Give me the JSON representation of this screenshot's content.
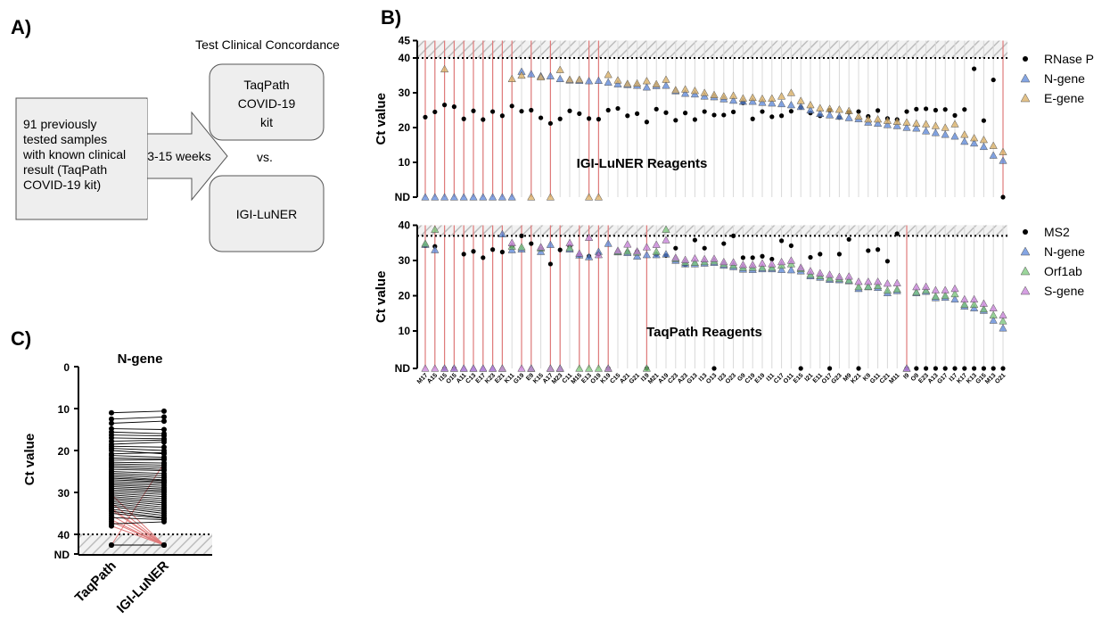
{
  "panels": {
    "a": "A)",
    "b": "B)",
    "c": "C)"
  },
  "panel_a": {
    "header": "Test Clinical Concordance",
    "samples_box": [
      "91 previously",
      "tested samples",
      "with known clinical",
      "result (TaqPath",
      "COVID-19 kit)"
    ],
    "arrow_label": "3-15 weeks",
    "taqpath_box": [
      "TaqPath",
      "COVID-19",
      "kit"
    ],
    "vs": "vs.",
    "luner_box": "IGI-LuNER"
  },
  "colors": {
    "control": "#000000",
    "ngene": "#5B87D9",
    "egene": "#D9AE62",
    "orf1ab": "#79C779",
    "sgene": "#C77FD8",
    "discordant_line": "#E07B7B",
    "gridline": "#d9d9d9",
    "hatch": "#bdbdbd"
  },
  "chart_data": [
    {
      "type": "scatter",
      "title": "IGI-LuNER Reagents",
      "ylabel": "Ct value",
      "ylim": [
        0,
        45
      ],
      "yticks": [
        "ND",
        "10",
        "20",
        "30",
        "40",
        "45"
      ],
      "threshold": 40,
      "legend_position": "right",
      "samples": [
        "M17",
        "A15",
        "I15",
        "O15",
        "A11",
        "C13",
        "E17",
        "K23",
        "E21",
        "K11",
        "G19",
        "E9",
        "K15",
        "A17",
        "M23",
        "C11",
        "M15",
        "E13",
        "O19",
        "K19",
        "C15",
        "A21",
        "G21",
        "I19",
        "M21",
        "A19",
        "C23",
        "A23",
        "G13",
        "I13",
        "O13",
        "I23",
        "O23",
        "G9",
        "C19",
        "E19",
        "I11",
        "C17",
        "O11",
        "E15",
        "I21",
        "E11",
        "O17",
        "G23",
        "M9",
        "K21",
        "K9",
        "G11",
        "C21",
        "M11",
        "I9",
        "O9",
        "E23",
        "A13",
        "G17",
        "I17",
        "K17",
        "K13",
        "G15",
        "M13",
        "O21"
      ],
      "series": [
        {
          "name": "RNase P",
          "marker": "circle",
          "values": [
            23.0,
            24.5,
            26.5,
            26.0,
            22.5,
            24.8,
            22.3,
            24.6,
            23.4,
            26.2,
            24.7,
            25.0,
            22.8,
            21.2,
            22.5,
            24.8,
            24.0,
            22.6,
            22.4,
            25.0,
            25.5,
            23.4,
            24.0,
            21.6,
            25.3,
            24.3,
            22.1,
            24.2,
            22.3,
            24.6,
            23.6,
            23.6,
            24.5,
            27.1,
            22.5,
            24.6,
            23.1,
            23.4,
            24.7,
            25.8,
            24.2,
            23.4,
            25.0,
            22.9,
            24.4,
            24.6,
            23.2,
            24.9,
            22.6,
            22.3,
            24.6,
            25.3,
            25.4,
            25.0,
            25.2,
            23.5,
            25.2,
            36.9,
            22.0,
            33.7,
            0
          ]
        },
        {
          "name": "N-gene",
          "marker": "triangle",
          "values": [
            0,
            0,
            0,
            0,
            0,
            0,
            0,
            0,
            0,
            0,
            36.1,
            35.4,
            34.8,
            34.8,
            34.0,
            33.6,
            33.5,
            33.4,
            33.5,
            33.0,
            32.5,
            32.3,
            32.1,
            31.6,
            32.0,
            32.1,
            30.5,
            29.8,
            29.6,
            29.0,
            28.8,
            28.2,
            27.8,
            27.5,
            27.5,
            27.2,
            27.0,
            26.8,
            26.5,
            26.0,
            25.0,
            24.0,
            23.6,
            23.2,
            22.8,
            22.5,
            21.5,
            21.2,
            20.8,
            20.5,
            20.0,
            19.8,
            19.0,
            18.5,
            18.0,
            17.5,
            16.0,
            15.5,
            14.5,
            12.0,
            10.5
          ]
        },
        {
          "name": "E-gene",
          "marker": "triangle",
          "values": [
            null,
            null,
            36.8,
            null,
            null,
            null,
            null,
            null,
            null,
            34.0,
            35.0,
            0,
            34.5,
            0,
            36.6,
            33.8,
            33.8,
            0,
            0,
            35.2,
            33.6,
            32.6,
            32.7,
            33.4,
            32.5,
            33.8,
            30.8,
            31.0,
            30.6,
            30.0,
            29.4,
            29.0,
            29.2,
            28.4,
            28.6,
            28.3,
            28.4,
            29.0,
            30.0,
            27.7,
            26.5,
            25.6,
            25.4,
            25.2,
            24.8,
            23.2,
            22.4,
            22.4,
            22.0,
            21.7,
            21.5,
            21.2,
            21.0,
            20.5,
            20.0,
            21.0,
            18.0,
            17.0,
            16.5,
            14.8,
            13.0
          ]
        }
      ]
    },
    {
      "type": "scatter",
      "title": "TaqPath Reagents",
      "ylabel": "Ct value",
      "ylim": [
        0,
        40
      ],
      "yticks": [
        "ND",
        "10",
        "20",
        "30",
        "40"
      ],
      "threshold": 37,
      "legend_position": "right",
      "samples": [
        "M17",
        "A15",
        "I15",
        "O15",
        "A11",
        "C13",
        "E17",
        "K23",
        "E21",
        "K11",
        "G19",
        "E9",
        "K15",
        "A17",
        "M23",
        "C11",
        "M15",
        "E13",
        "O19",
        "K19",
        "C15",
        "A21",
        "G21",
        "I19",
        "M21",
        "A19",
        "C23",
        "A23",
        "G13",
        "I13",
        "O13",
        "I23",
        "O23",
        "G9",
        "C19",
        "E19",
        "I11",
        "C17",
        "O11",
        "E15",
        "I21",
        "E11",
        "O17",
        "G23",
        "M9",
        "K21",
        "K9",
        "G11",
        "C21",
        "M11",
        "I9",
        "O9",
        "E23",
        "A13",
        "G17",
        "I17",
        "K17",
        "K13",
        "G15",
        "M13",
        "O21"
      ],
      "series": [
        {
          "name": "MS2",
          "marker": "circle",
          "values": [
            34.2,
            34.0,
            0,
            0,
            31.8,
            32.6,
            30.8,
            33.1,
            32.4,
            34.0,
            37.0,
            34.8,
            33.2,
            29.0,
            33.0,
            34.0,
            31.5,
            31.2,
            31.8,
            0,
            32.4,
            32.4,
            32.5,
            0,
            31.7,
            31.4,
            33.5,
            28.8,
            35.8,
            33.5,
            0,
            34.8,
            37.0,
            30.8,
            30.8,
            31.2,
            30.4,
            35.6,
            34.2,
            0,
            30.9,
            31.8,
            0,
            31.8,
            36.0,
            0,
            32.8,
            33.1,
            29.8,
            37.6,
            0,
            0,
            0,
            0,
            0,
            0,
            0,
            0,
            0,
            0,
            0
          ]
        },
        {
          "name": "N-gene",
          "marker": "triangle",
          "values": [
            34.5,
            33.0,
            0,
            0,
            0,
            0,
            0,
            0,
            37.5,
            33.0,
            33.2,
            0,
            32.5,
            34.5,
            0,
            33.2,
            31.5,
            31.0,
            32.5,
            34.8,
            32.4,
            32.2,
            31.2,
            31.6,
            31.6,
            31.8,
            30.0,
            29.0,
            29.0,
            29.2,
            29.4,
            28.6,
            28.2,
            27.5,
            27.4,
            27.6,
            27.6,
            27.4,
            27.3,
            27.0,
            25.6,
            25.2,
            24.6,
            24.5,
            24.2,
            22.0,
            22.5,
            22.3,
            20.8,
            21.4,
            0,
            20.8,
            21.2,
            19.4,
            19.5,
            19.0,
            17.0,
            16.5,
            15.8,
            13.0,
            10.8
          ]
        },
        {
          "name": "Orf1ab",
          "marker": "triangle",
          "values": [
            34.8,
            38.8,
            null,
            null,
            null,
            null,
            null,
            null,
            0,
            34.0,
            33.8,
            0,
            33.5,
            0,
            0,
            33.6,
            0,
            0,
            0,
            0,
            32.5,
            32.6,
            32.3,
            0,
            32.5,
            38.8,
            30.5,
            29.5,
            29.4,
            29.6,
            29.8,
            29.0,
            28.6,
            28.0,
            28.0,
            28.0,
            28.0,
            28.6,
            29.0,
            27.6,
            26.0,
            25.6,
            25.0,
            24.8,
            24.4,
            22.5,
            22.6,
            22.8,
            21.5,
            21.8,
            null,
            21.0,
            21.5,
            19.8,
            20.0,
            20.5,
            17.5,
            17.5,
            16.2,
            14.5,
            12.8
          ]
        },
        {
          "name": "S-gene",
          "marker": "triangle",
          "values": [
            0,
            0,
            0,
            0,
            0,
            0,
            0,
            0,
            0,
            35.0,
            0,
            0,
            33.8,
            0,
            0,
            35.0,
            32.0,
            36.5,
            31.6,
            0,
            32.8,
            34.6,
            32.6,
            33.8,
            34.5,
            35.8,
            30.8,
            30.2,
            30.6,
            30.4,
            30.5,
            29.6,
            29.5,
            28.8,
            28.8,
            29.2,
            29.0,
            29.6,
            30.0,
            28.0,
            27.0,
            26.4,
            26.0,
            25.4,
            25.5,
            24.0,
            24.0,
            24.0,
            23.5,
            23.6,
            0,
            22.5,
            22.6,
            21.6,
            21.6,
            22.0,
            19.0,
            19.0,
            17.8,
            16.5,
            14.5
          ]
        }
      ]
    },
    {
      "type": "line",
      "title": "N-gene",
      "ylabel": "Ct value",
      "ylim": [
        0,
        40
      ],
      "yticks": [
        "0",
        "10",
        "20",
        "30",
        "40",
        "ND"
      ],
      "threshold": 40,
      "categories": [
        "TaqPath",
        "IGI-LuNER"
      ],
      "pairs": [
        [
          11.0,
          10.6
        ],
        [
          12.5,
          12.0
        ],
        [
          13.5,
          13.0
        ],
        [
          14.8,
          15.0
        ],
        [
          15.6,
          16.0
        ],
        [
          16.3,
          16.5
        ],
        [
          17.0,
          17.2
        ],
        [
          17.8,
          17.5
        ],
        [
          18.5,
          18.0
        ],
        [
          19.0,
          19.2
        ],
        [
          19.5,
          20.0
        ],
        [
          20.0,
          20.8
        ],
        [
          20.8,
          20.5
        ],
        [
          21.2,
          21.6
        ],
        [
          21.8,
          22.0
        ],
        [
          22.3,
          22.2
        ],
        [
          22.8,
          23.0
        ],
        [
          23.2,
          23.5
        ],
        [
          23.6,
          24.0
        ],
        [
          24.0,
          24.5
        ],
        [
          24.5,
          24.8
        ],
        [
          25.0,
          25.5
        ],
        [
          25.4,
          26.0
        ],
        [
          25.8,
          26.5
        ],
        [
          26.2,
          27.0
        ],
        [
          26.6,
          27.2
        ],
        [
          27.0,
          27.5
        ],
        [
          27.4,
          27.8
        ],
        [
          27.8,
          28.3
        ],
        [
          28.2,
          28.8
        ],
        [
          28.6,
          29.2
        ],
        [
          29.0,
          29.6
        ],
        [
          29.4,
          30.0
        ],
        [
          29.8,
          30.5
        ],
        [
          30.2,
          31.0
        ],
        [
          30.6,
          31.5
        ],
        [
          31.0,
          32.0
        ],
        [
          31.4,
          32.5
        ],
        [
          31.8,
          33.0
        ],
        [
          32.2,
          33.5
        ],
        [
          32.6,
          34.0
        ],
        [
          33.0,
          34.5
        ],
        [
          33.4,
          35.0
        ],
        [
          34.0,
          35.5
        ],
        [
          34.5,
          36.0
        ],
        [
          35.0,
          36.2
        ],
        [
          36.0,
          36.5
        ],
        [
          37.5,
          37.0
        ],
        [
          43.0,
          43.0
        ],
        [
          43.0,
          43.0
        ]
      ],
      "discordant_pairs": [
        [
          30.5,
          43.0
        ],
        [
          32.5,
          43.0
        ],
        [
          33.8,
          43.0
        ],
        [
          34.2,
          43.0
        ],
        [
          35.5,
          43.0
        ],
        [
          36.5,
          43.0
        ],
        [
          37.0,
          43.0
        ],
        [
          38.0,
          43.0
        ],
        [
          43.0,
          23.0
        ]
      ]
    }
  ]
}
